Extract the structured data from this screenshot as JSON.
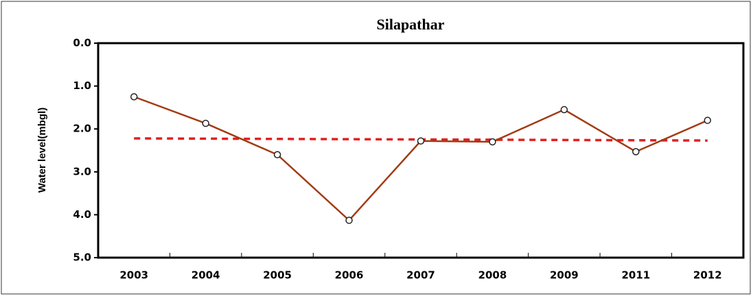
{
  "chart_data": {
    "type": "line",
    "title": "Silapathar",
    "y_label": "Water level(mbgl)",
    "categories": [
      "2003",
      "2004",
      "2005",
      "2006",
      "2007",
      "2008",
      "2009",
      "2011",
      "2012"
    ],
    "series": [
      {
        "color": "#a33a12",
        "values": [
          1.25,
          1.87,
          2.6,
          4.13,
          2.28,
          2.3,
          1.55,
          2.53,
          1.8
        ]
      }
    ],
    "trendline": {
      "color": "#e02020",
      "values": [
        2.22,
        2.27
      ]
    },
    "ylim": [
      0,
      5
    ],
    "y_inverted": true,
    "yticks": [
      {
        "value": 0,
        "label": "0.0"
      },
      {
        "value": 1,
        "label": "1.0"
      },
      {
        "value": 2,
        "label": "2.0"
      },
      {
        "value": 3,
        "label": "3.0"
      },
      {
        "value": 4,
        "label": "4.0"
      },
      {
        "value": 5,
        "label": "5.0"
      }
    ]
  }
}
